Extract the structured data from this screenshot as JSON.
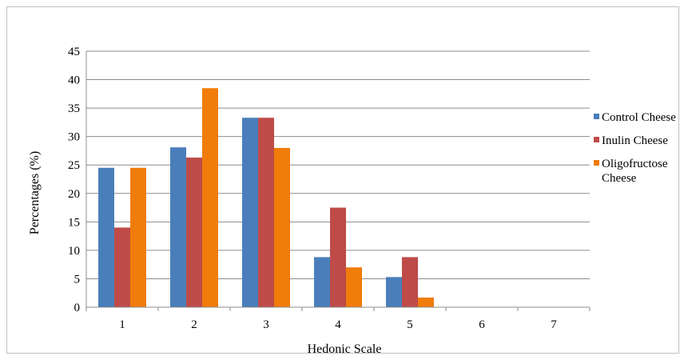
{
  "chart_data": {
    "type": "bar",
    "xlabel": "Hedonic Scale",
    "ylabel": "Percentages (%)",
    "categories": [
      "1",
      "2",
      "3",
      "4",
      "5",
      "6",
      "7"
    ],
    "ylim": [
      0,
      45
    ],
    "yticks": [
      "0",
      "5",
      "10",
      "15",
      "20",
      "25",
      "30",
      "35",
      "40",
      "45"
    ],
    "grid": true,
    "legend_position": "right",
    "series": [
      {
        "name": "Control Cheese",
        "color": "#4a7ebb",
        "values": [
          24.5,
          28.1,
          33.3,
          8.8,
          5.3,
          0,
          0
        ]
      },
      {
        "name": "Inulin Cheese",
        "color": "#be4b48",
        "values": [
          14.0,
          26.3,
          33.3,
          17.5,
          8.8,
          0,
          0
        ]
      },
      {
        "name": "Oligofructose Cheese",
        "color": "#f07c0a",
        "values": [
          24.5,
          38.5,
          28.0,
          7.0,
          1.7,
          0,
          0
        ]
      }
    ],
    "legend_labels": [
      [
        "Control Cheese"
      ],
      [
        "Inulin Cheese"
      ],
      [
        "Oligofructose",
        "Cheese"
      ]
    ]
  }
}
